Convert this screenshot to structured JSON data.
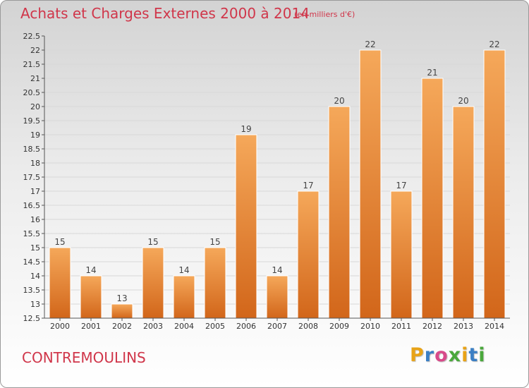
{
  "title": "Achats et Charges Externes 2000 à 2014",
  "subtitle": "(en milliers d'€)",
  "commune": "CONTREMOULINS",
  "logo": {
    "letters": [
      "P",
      "r",
      "o",
      "x",
      "i",
      "t",
      "i"
    ],
    "colors": [
      "#e8a317",
      "#3b7fc4",
      "#d84a8a",
      "#4aa83c",
      "#e8a317",
      "#3b7fc4",
      "#4aa83c"
    ]
  },
  "colors": {
    "title": "#d0364a",
    "bar_top": "#f5a85a",
    "bar_bottom": "#d2661a",
    "grid": "#d8d8d8"
  },
  "chart_data": {
    "type": "bar",
    "title": "Achats et Charges Externes 2000 à 2014",
    "categories": [
      "2000",
      "2001",
      "2002",
      "2003",
      "2004",
      "2005",
      "2006",
      "2007",
      "2008",
      "2009",
      "2010",
      "2011",
      "2012",
      "2013",
      "2014"
    ],
    "values": [
      15,
      14,
      13,
      15,
      14,
      15,
      19,
      14,
      17,
      20,
      22,
      17,
      21,
      20,
      22
    ],
    "value_labels": [
      "15",
      "14",
      "13",
      "15",
      "14",
      "15",
      "19",
      "14",
      "17",
      "20",
      "22",
      "17",
      "21",
      "20",
      "22"
    ],
    "ylim": [
      12.5,
      22.5
    ],
    "yticks": [
      "12.5",
      "13",
      "13.5",
      "14",
      "14.5",
      "15",
      "15.5",
      "16",
      "16.5",
      "17",
      "17.5",
      "18",
      "18.5",
      "19",
      "19.5",
      "20",
      "20.5",
      "21",
      "21.5",
      "22",
      "22.5"
    ],
    "grid": true,
    "legend": "none"
  }
}
